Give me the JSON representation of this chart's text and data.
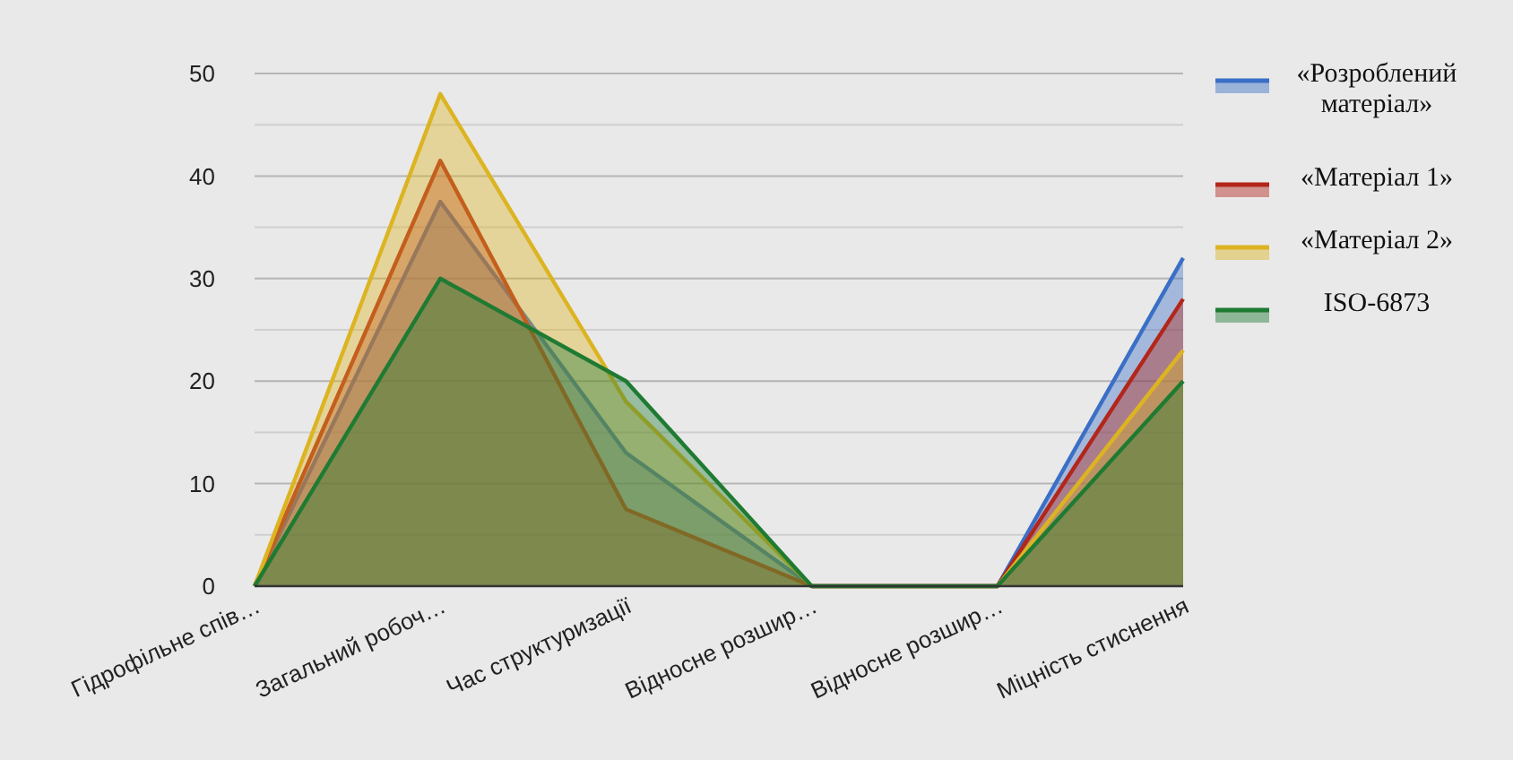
{
  "chart_data": {
    "type": "area",
    "categories": [
      "Гідрофільне спів…",
      "Загальний робоч…",
      "Час структуризації",
      "Відносне розшир…",
      "Відносне розшир…",
      "Міцність стиснення"
    ],
    "series": [
      {
        "name": "«Розроблений матеріал»",
        "color": "#3b6fc6",
        "values": [
          0,
          37.5,
          13,
          0,
          0,
          32
        ]
      },
      {
        "name": "«Матеріал 1»",
        "color": "#b3261a",
        "values": [
          0,
          41.5,
          7.5,
          0,
          0,
          28
        ]
      },
      {
        "name": "«Матеріал 2»",
        "color": "#dcb422",
        "values": [
          0,
          48,
          18,
          0,
          0,
          23
        ]
      },
      {
        "name": "ISO-6873",
        "color": "#1f7a32",
        "values": [
          0,
          30,
          20,
          0,
          0,
          20
        ]
      }
    ],
    "ylim": [
      0,
      50
    ],
    "yticks": [
      0,
      {
        "value": 5,
        "label": null
      },
      10,
      {
        "value": 15,
        "label": null
      },
      20,
      {
        "value": 25,
        "label": null
      },
      30,
      {
        "value": 35,
        "label": null
      },
      40,
      {
        "value": 45,
        "label": null
      },
      50
    ],
    "grid": "y",
    "legend": "right"
  }
}
